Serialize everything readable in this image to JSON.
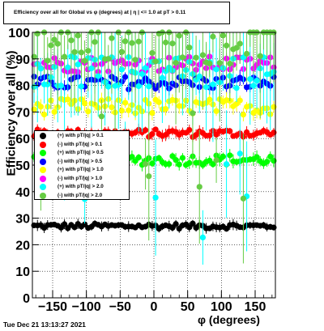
{
  "title": "Efficiency over all for Global vs φ (degrees) at | η | <= 1.0 at pT > 0.11",
  "timestamp": "Tue Dec 21 13:13:27 2021",
  "chart_data": {
    "type": "scatter",
    "xlabel": "φ (degrees)",
    "ylabel": "Efficiency over all (%)",
    "xlim": [
      -180,
      180
    ],
    "ylim": [
      0,
      100
    ],
    "xticks": [
      -150,
      -100,
      -50,
      0,
      50,
      100,
      150
    ],
    "yticks": [
      0,
      10,
      20,
      30,
      40,
      50,
      60,
      70,
      80,
      90,
      100
    ],
    "grid": true,
    "legend_position": "left-middle",
    "series": [
      {
        "name": "(+) with pT/|q| > 0.1",
        "color": "#000000",
        "level": 27,
        "spread": 1.0
      },
      {
        "name": "(-) with pT/|q| > 0.1",
        "color": "#ff0000",
        "level": 62,
        "spread": 1.5
      },
      {
        "name": "(+) with pT/|q| > 0.5",
        "color": "#00ff00",
        "level": 52,
        "spread": 2.0
      },
      {
        "name": "(-) with pT/|q| > 0.5",
        "color": "#0000ff",
        "level": 81,
        "spread": 2.5
      },
      {
        "name": "(+) with pT/|q| > 1.0",
        "color": "#ffff00",
        "level": 72,
        "spread": 3.0
      },
      {
        "name": "(-) with pT/|q| > 1.0",
        "color": "#ff00ff",
        "level": 88,
        "spread": 3.0
      },
      {
        "name": "(+) with pT/|q| > 2.0",
        "color": "#00ffff",
        "level": 85,
        "spread": 6.0
      },
      {
        "name": "(-) with pT/|q| > 2.0",
        "color": "#66cc44",
        "level": 96,
        "spread": 8.0
      }
    ]
  }
}
